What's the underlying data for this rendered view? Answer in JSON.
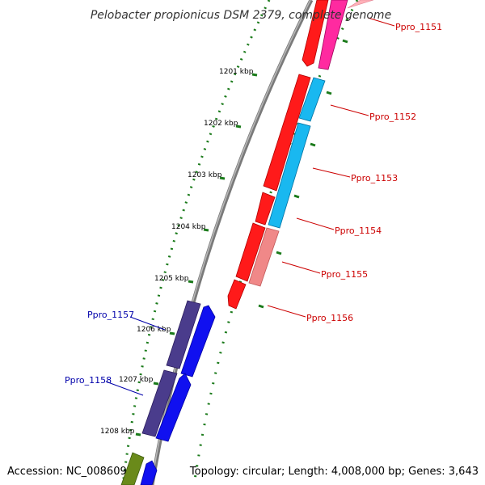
{
  "title": "Pelobacter propionicus DSM 2379, complete genome",
  "footer": {
    "accession": "Accession: NC_008609",
    "summary": "Topology: circular; Length: 4,008,000 bp; Genes: 3,643"
  },
  "scale_labels": [
    "1201 kbp",
    "1202 kbp",
    "1203 kbp",
    "1204 kbp",
    "1205 kbp",
    "1206 kbp",
    "1207 kbp",
    "1208 kbp"
  ],
  "gene_labels": [
    "Ppro_1151",
    "Ppro_1152",
    "Ppro_1153",
    "Ppro_1154",
    "Ppro_1155",
    "Ppro_1156",
    "Ppro_1157",
    "Ppro_1158"
  ],
  "colors": {
    "backbone": "#888888",
    "tick": "#1a7a1a",
    "label_forward": "#cc0000",
    "label_reverse": "#0000aa",
    "red": "#ff1a1a",
    "pink": "#ff2aa0",
    "light_pink": "#ffb0b8",
    "cyan": "#19b8f0",
    "salmon": "#f08888",
    "purple": "#4a3c8c",
    "blue": "#1010f0",
    "olive": "#6a8a1a"
  }
}
